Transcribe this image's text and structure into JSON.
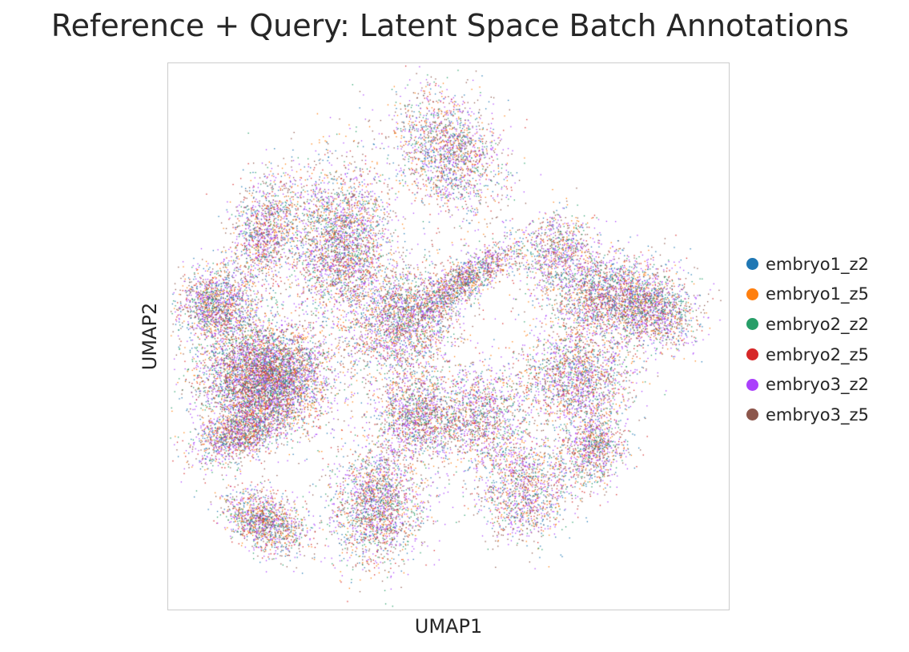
{
  "chart_data": {
    "type": "scatter",
    "title": "Reference + Query: Latent Space Batch Annotations",
    "xlabel": "UMAP1",
    "ylabel": "UMAP2",
    "grid": false,
    "legend_placement": "right",
    "series": [
      {
        "name": "embryo1_z2",
        "color": "#1f77b4"
      },
      {
        "name": "embryo1_z5",
        "color": "#ff7f0e"
      },
      {
        "name": "embryo2_z2",
        "color": "#279e68"
      },
      {
        "name": "embryo2_z5",
        "color": "#d62728"
      },
      {
        "name": "embryo3_z2",
        "color": "#aa40fc"
      },
      {
        "name": "embryo3_z5",
        "color": "#8c564b"
      }
    ]
  }
}
